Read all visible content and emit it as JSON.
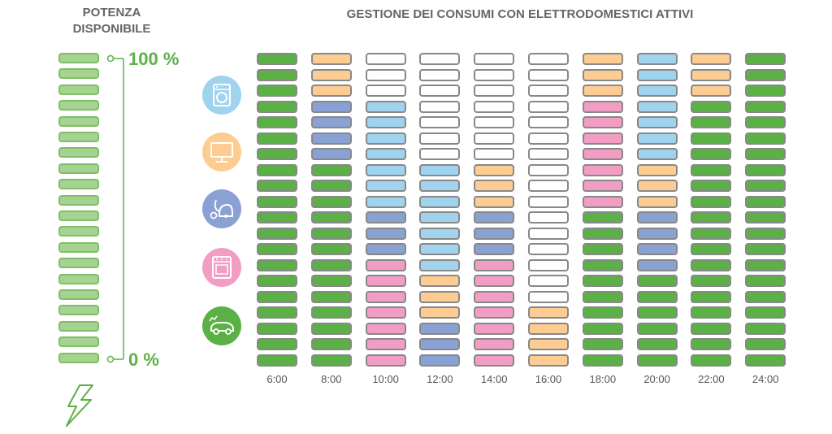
{
  "titles": {
    "left": "POTENZA\nDISPONIBILE",
    "main": "GESTIONE DEI CONSUMI CON ELETTRODOMESTICI ATTIVI"
  },
  "scale": {
    "max_label": "100 %",
    "min_label": "0 %"
  },
  "icons": [
    "washing-machine-icon",
    "tv-icon",
    "vacuum-cleaner-icon",
    "oven-icon",
    "electric-car-icon",
    "lightning-icon"
  ],
  "colors": {
    "G": "#5cb146",
    "O": "#fdcc93",
    "W": "#ffffff",
    "B": "#9fd3ee",
    "D": "#8aa1d4",
    "P": "#f29ec4",
    "meter": "#a5d490",
    "accent": "#5cb146"
  },
  "chart_data": {
    "type": "table",
    "x": [
      "6:00",
      "8:00",
      "10:00",
      "12:00",
      "14:00",
      "16:00",
      "18:00",
      "20:00",
      "22:00",
      "24:00"
    ],
    "levels_per_column": 20,
    "columns_top_to_bottom": [
      "GGGGGGGGGGGGGGGGGGGG",
      "OOODDDDGGGGGGGGGGGGG",
      "WWWBBBBBBBDDDPPPPPPP",
      "WWWWWWWBBBBBBBOOODDD",
      "WWWWWWWOOODDDPPPPPPP",
      "WWWWWWWWWWWWWWWWOOOO",
      "OOOPPPPPPPGGGGGGGGGG",
      "BBBBBBBOOODDDDGGGGGG",
      "OOOGGGGGGGGGGGGGGGGG",
      "GGGGGGGGGGGGGGGGGGGG"
    ]
  }
}
